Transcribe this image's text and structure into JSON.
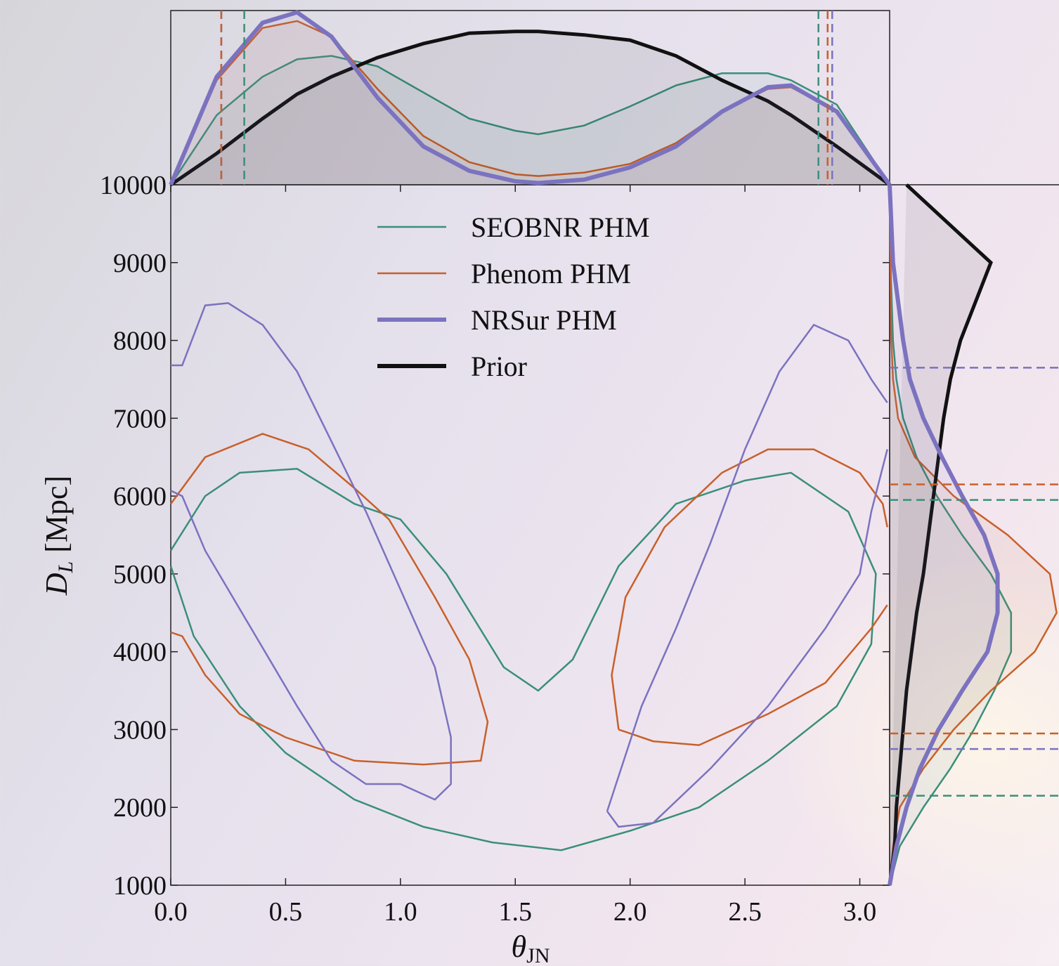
{
  "chart_data": [
    {
      "type": "contour",
      "xlabel": "θ",
      "xlabel_sub": "JN",
      "ylabel": "D",
      "ylabel_sub": "L",
      "ylabel_unit": "[Mpc]",
      "xlim": [
        0,
        3.13
      ],
      "ylim": [
        1000,
        10000
      ],
      "xticks": [
        {
          "value": 0,
          "label": "0.0"
        },
        {
          "value": 0.5,
          "label": "0.5"
        },
        {
          "value": 1,
          "label": "1.0"
        },
        {
          "value": 1.5,
          "label": "1.5"
        },
        {
          "value": 2,
          "label": "2.0"
        },
        {
          "value": 2.5,
          "label": "2.5"
        },
        {
          "value": 3,
          "label": "3.0"
        }
      ],
      "yticks": [
        1000,
        2000,
        3000,
        4000,
        5000,
        6000,
        7000,
        8000,
        9000,
        10000
      ],
      "legend": [
        {
          "name": "SEOBNR PHM",
          "color": "#3a8f7a",
          "width": 2.5
        },
        {
          "name": "Phenom PHM",
          "color": "#c8602a",
          "width": 2.5
        },
        {
          "name": "NRSur PHM",
          "color": "#7b72c0",
          "width": 6
        },
        {
          "name": "Prior",
          "color": "#111111",
          "width": 6
        }
      ],
      "series": [
        {
          "color": "#3a8f7a",
          "x": [
            0.0,
            0.15,
            0.3,
            0.55,
            0.8,
            1.0,
            1.2,
            1.45,
            1.6,
            1.75,
            1.95,
            2.2,
            2.5,
            2.7,
            2.95,
            3.07,
            3.05,
            2.9,
            2.6,
            2.3,
            2.0,
            1.7,
            1.4,
            1.1,
            0.8,
            0.5,
            0.3,
            0.1,
            0.0
          ],
          "y": [
            5300,
            6000,
            6300,
            6350,
            5900,
            5700,
            5000,
            3800,
            3500,
            3900,
            5100,
            5900,
            6200,
            6300,
            5800,
            5000,
            4100,
            3300,
            2600,
            2000,
            1700,
            1450,
            1550,
            1750,
            2100,
            2700,
            3300,
            4200,
            5100
          ]
        },
        {
          "color": "#c8602a",
          "x": [
            0.0,
            0.15,
            0.4,
            0.6,
            0.8,
            0.95,
            1.15,
            1.3,
            1.38,
            1.35,
            1.1,
            0.8,
            0.5,
            0.3,
            0.15,
            0.05,
            0.0,
            null,
            1.95,
            1.92,
            1.98,
            2.15,
            2.4,
            2.6,
            2.8,
            3.0,
            3.1,
            3.12,
            null,
            3.12,
            3.05,
            2.85,
            2.6,
            2.3,
            2.1,
            1.95
          ],
          "y": [
            5900,
            6500,
            6800,
            6600,
            6100,
            5700,
            4700,
            3900,
            3100,
            2600,
            2550,
            2600,
            2900,
            3200,
            3700,
            4200,
            4250,
            null,
            3000,
            3700,
            4700,
            5600,
            6300,
            6600,
            6600,
            6300,
            5900,
            5600,
            null,
            4600,
            4300,
            3600,
            3200,
            2800,
            2850,
            3000
          ]
        },
        {
          "color": "#7b72c0",
          "x": [
            0.0,
            0.05,
            0.15,
            0.25,
            0.4,
            0.55,
            0.7,
            0.85,
            1.0,
            1.15,
            1.22,
            1.22,
            1.15,
            1.0,
            0.85,
            0.7,
            0.55,
            0.35,
            0.15,
            0.05,
            0.0,
            null,
            1.9,
            1.95,
            2.05,
            2.2,
            2.35,
            2.5,
            2.65,
            2.8,
            2.95,
            3.05,
            3.12,
            null,
            3.12,
            3.05,
            3.0,
            2.85,
            2.6,
            2.35,
            2.1,
            1.95,
            1.9
          ],
          "y": [
            7680,
            7680,
            8450,
            8480,
            8200,
            7600,
            6700,
            5800,
            4800,
            3800,
            2900,
            2300,
            2100,
            2300,
            2300,
            2600,
            3300,
            4300,
            5300,
            6000,
            6070,
            null,
            1950,
            2400,
            3300,
            4300,
            5400,
            6600,
            7600,
            8200,
            8000,
            7500,
            7200,
            null,
            6600,
            5800,
            5000,
            4300,
            3300,
            2500,
            1800,
            1750,
            1950
          ]
        }
      ]
    },
    {
      "type": "line",
      "xlim": [
        0,
        3.13
      ],
      "ylim": [
        0,
        1
      ],
      "x": [
        0,
        0.2,
        0.4,
        0.55,
        0.7,
        0.9,
        1.1,
        1.3,
        1.5,
        1.6,
        1.8,
        2.0,
        2.2,
        2.4,
        2.6,
        2.7,
        2.9,
        3.13
      ],
      "series": [
        {
          "color": "#3a8f7a",
          "width": 2.5,
          "values": [
            0,
            0.4,
            0.62,
            0.72,
            0.74,
            0.68,
            0.53,
            0.38,
            0.31,
            0.29,
            0.34,
            0.45,
            0.57,
            0.64,
            0.64,
            0.6,
            0.46,
            0
          ]
        },
        {
          "color": "#c8602a",
          "width": 2.5,
          "values": [
            0,
            0.6,
            0.9,
            0.94,
            0.85,
            0.55,
            0.28,
            0.13,
            0.06,
            0.05,
            0.07,
            0.12,
            0.24,
            0.42,
            0.55,
            0.56,
            0.42,
            0
          ]
        },
        {
          "color": "#111111",
          "width": 5,
          "values": [
            0,
            0.18,
            0.38,
            0.52,
            0.62,
            0.73,
            0.81,
            0.87,
            0.88,
            0.88,
            0.86,
            0.83,
            0.74,
            0.6,
            0.48,
            0.4,
            0.22,
            0
          ]
        },
        {
          "color": "#7b72c0",
          "width": 6,
          "values": [
            0,
            0.62,
            0.93,
            0.99,
            0.85,
            0.5,
            0.22,
            0.08,
            0.02,
            0.01,
            0.03,
            0.1,
            0.22,
            0.42,
            0.56,
            0.57,
            0.42,
            0
          ]
        }
      ],
      "quantiles": [
        {
          "color": "#7b72c0",
          "value": 0.22
        },
        {
          "color": "#c8602a",
          "value": 0.22
        },
        {
          "color": "#3a8f7a",
          "value": 0.32
        },
        {
          "color": "#3a8f7a",
          "value": 2.82
        },
        {
          "color": "#c8602a",
          "value": 2.86
        },
        {
          "color": "#7b72c0",
          "value": 2.88
        }
      ]
    },
    {
      "type": "line",
      "orientation": "horizontal",
      "xlim": [
        0,
        1
      ],
      "ylim": [
        1000,
        10000
      ],
      "y": [
        1000,
        1500,
        2000,
        2500,
        3000,
        3500,
        4000,
        4500,
        5000,
        5500,
        6000,
        6500,
        7000,
        7500,
        8000,
        9000,
        10000
      ],
      "series": [
        {
          "color": "#3a8f7a",
          "width": 2.5,
          "values": [
            0,
            0.06,
            0.2,
            0.36,
            0.5,
            0.62,
            0.72,
            0.72,
            0.6,
            0.43,
            0.28,
            0.16,
            0.08,
            0.04,
            0.02,
            0.005,
            0
          ]
        },
        {
          "color": "#c8602a",
          "width": 2.5,
          "values": [
            0,
            0.02,
            0.06,
            0.2,
            0.38,
            0.6,
            0.86,
            0.99,
            0.95,
            0.7,
            0.38,
            0.15,
            0.05,
            0.02,
            0.01,
            0.005,
            0
          ]
        },
        {
          "color": "#111111",
          "width": 5,
          "values": [
            0,
            0.03,
            0.04,
            0.06,
            0.08,
            0.1,
            0.13,
            0.16,
            0.2,
            0.23,
            0.26,
            0.29,
            0.32,
            0.36,
            0.42,
            0.6,
            0.1
          ]
        },
        {
          "color": "#7b72c0",
          "width": 6,
          "values": [
            0,
            0.04,
            0.1,
            0.18,
            0.29,
            0.43,
            0.58,
            0.64,
            0.64,
            0.56,
            0.43,
            0.31,
            0.2,
            0.12,
            0.08,
            0.02,
            0
          ]
        }
      ],
      "quantiles": [
        {
          "color": "#7b72c0",
          "value": 7650
        },
        {
          "color": "#c8602a",
          "value": 6150
        },
        {
          "color": "#3a8f7a",
          "value": 5950
        },
        {
          "color": "#c8602a",
          "value": 2950
        },
        {
          "color": "#7b72c0",
          "value": 2750
        },
        {
          "color": "#3a8f7a",
          "value": 2150
        }
      ]
    }
  ]
}
